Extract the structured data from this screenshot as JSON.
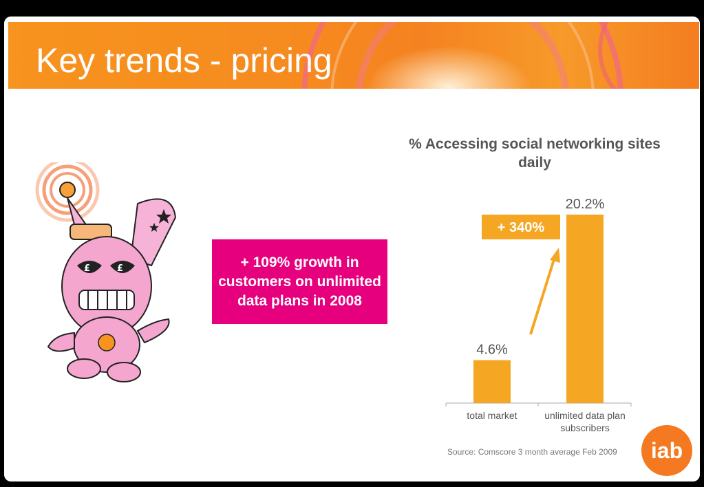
{
  "slide": {
    "title": "Key trends - pricing",
    "growth_callout": "+ 109% growth in customers on unlimited data plans in 2008",
    "source": "Source: Comscore 3 month average Feb 2009",
    "logo_text": "iab"
  },
  "colors": {
    "banner": "#f7931e",
    "callout": "#e6007e",
    "bar": "#f5a623"
  },
  "icons": {
    "mascot": "pink-robot-bunny-mascot-icon",
    "logo": "iab-logo-icon"
  },
  "chart_data": {
    "type": "bar",
    "title": "% Accessing social networking sites daily",
    "categories": [
      "total market",
      "unlimited data plan subscribers"
    ],
    "values": [
      4.6,
      20.2
    ],
    "value_labels": [
      "4.6%",
      "20.2%"
    ],
    "annotation": "+ 340%",
    "ylim": [
      0,
      20.2
    ],
    "grid": false,
    "legend": "none"
  }
}
